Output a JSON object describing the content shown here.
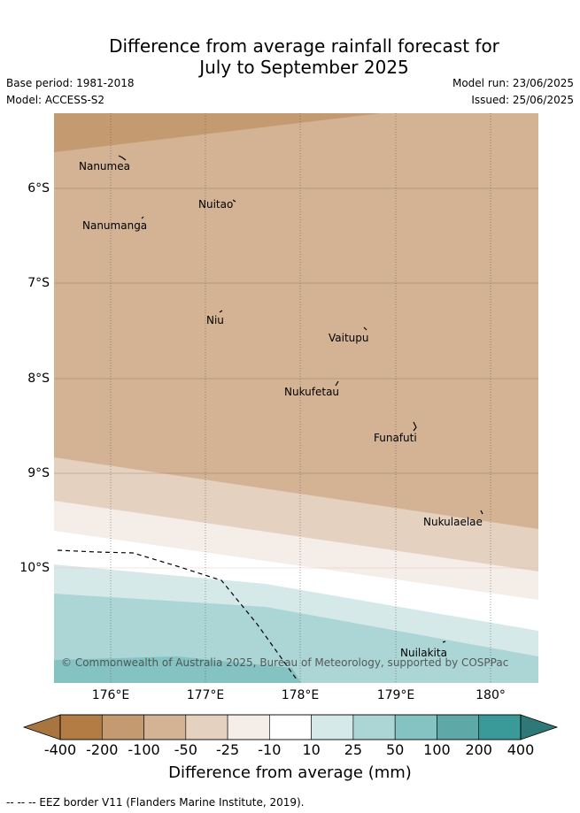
{
  "title": {
    "line1": "Difference from average rainfall forecast for",
    "line2": "July to September 2025"
  },
  "meta": {
    "base_period": "Base period: 1981-2018",
    "model": "Model: ACCESS-S2",
    "model_run": "Model run: 23/06/2025",
    "issued": "Issued: 25/06/2025"
  },
  "axes": {
    "lat_labels": [
      "6°S",
      "7°S",
      "8°S",
      "9°S",
      "10°S"
    ],
    "lon_labels": [
      "176°E",
      "177°E",
      "178°E",
      "179°E",
      "180°"
    ]
  },
  "places": [
    {
      "name": "Nanumea"
    },
    {
      "name": "Nuitao"
    },
    {
      "name": "Nanumanga"
    },
    {
      "name": "Niu"
    },
    {
      "name": "Vaitupu"
    },
    {
      "name": "Nukufetau"
    },
    {
      "name": "Funafuti"
    },
    {
      "name": "Nukulaelae"
    },
    {
      "name": "Nuilakita"
    }
  ],
  "copyright": "© Commonwealth of Australia 2025, Bureau of Meteorology, supported by COSPPac",
  "colorbar": {
    "title": "Difference from average (mm)",
    "labels": [
      "-400",
      "-200",
      "-100",
      "-50",
      "-25",
      "-10",
      "10",
      "25",
      "50",
      "100",
      "200",
      "400"
    ],
    "colors": [
      "#a87440",
      "#b27c44",
      "#c49a70",
      "#d3b394",
      "#e4d1c0",
      "#f5ede8",
      "#ffffff",
      "#d6e9e9",
      "#acd5d5",
      "#85c3c3",
      "#5ea8a8",
      "#3a9a9a",
      "#2e7878"
    ]
  },
  "footnote": "-- -- -- EEZ border V11 (Flanders Marine Institute, 2019)."
}
